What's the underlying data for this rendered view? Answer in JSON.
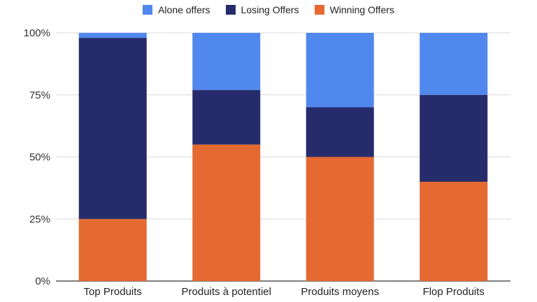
{
  "chart_data": {
    "type": "bar",
    "stacked": true,
    "percent": true,
    "categories": [
      "Top Produits",
      "Produits à potentiel",
      "Produits moyens",
      "Flop Produits"
    ],
    "series": [
      {
        "name": "Winning Offers",
        "color": "#E46A32",
        "values": [
          25,
          55,
          50,
          40
        ]
      },
      {
        "name": "Losing Offers",
        "color": "#262C6B",
        "values": [
          73,
          22,
          20,
          35
        ]
      },
      {
        "name": "Alone offers",
        "color": "#5188EE",
        "values": [
          2,
          23,
          30,
          25
        ]
      }
    ],
    "legend_order": [
      "Alone offers",
      "Losing Offers",
      "Winning Offers"
    ],
    "legend_position": "top",
    "yticks": [
      "0%",
      "25%",
      "50%",
      "75%",
      "100%"
    ],
    "ylim": [
      0,
      100
    ],
    "grid": true
  }
}
